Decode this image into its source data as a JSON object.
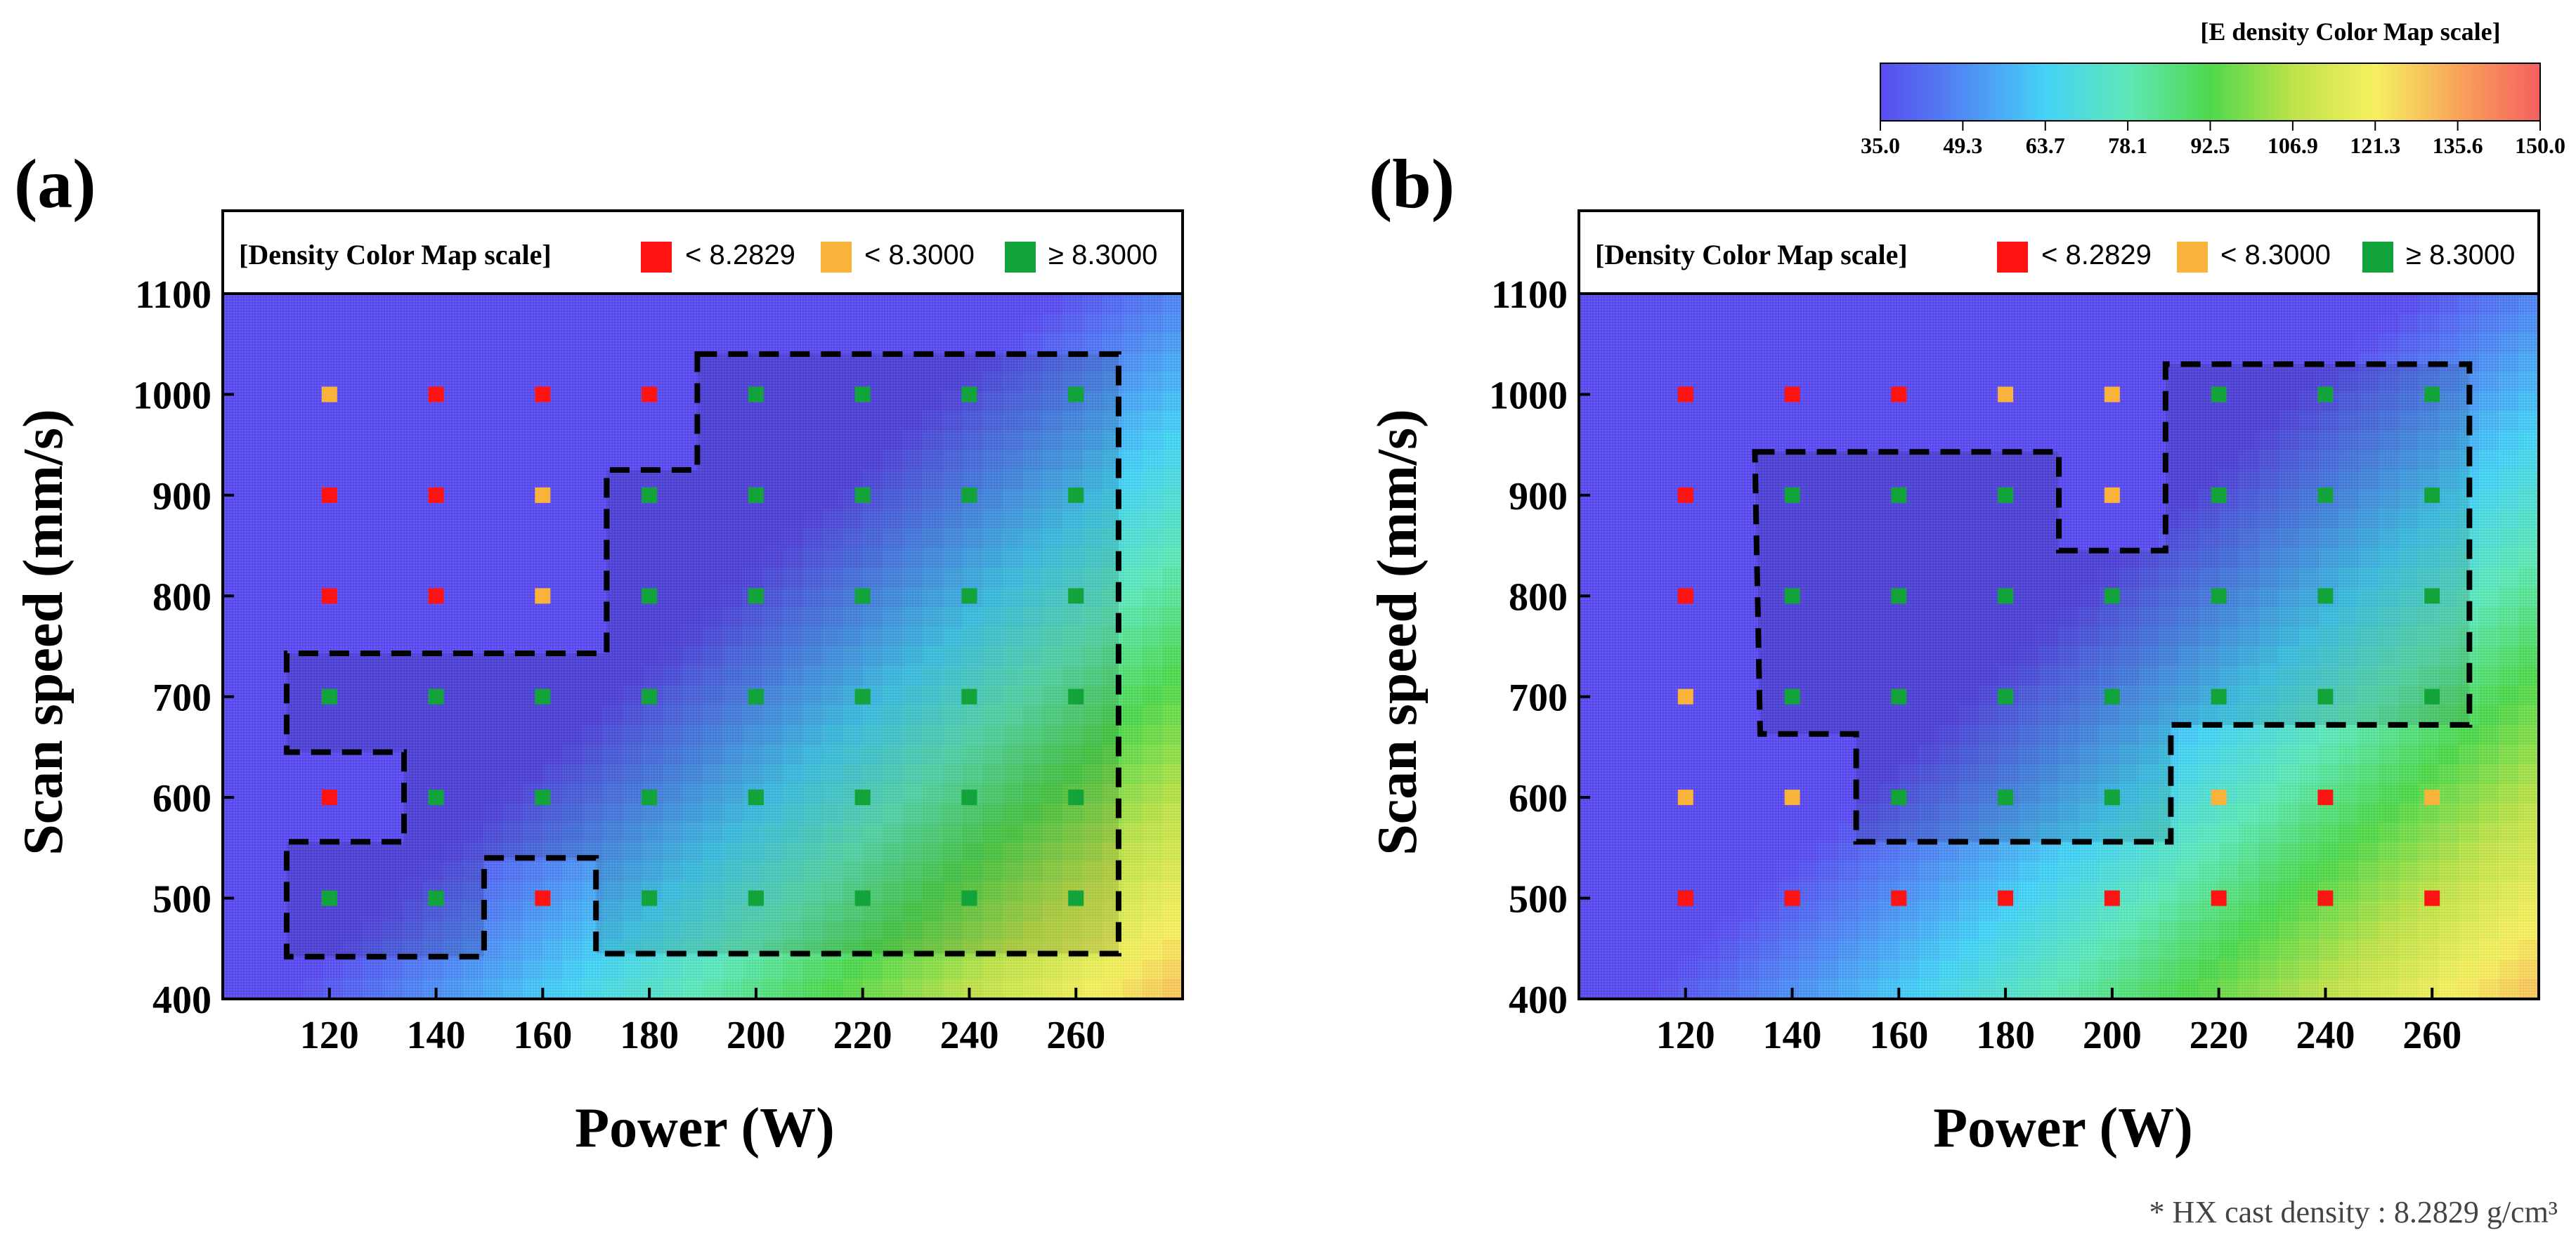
{
  "colors": {
    "red": "#ff1212",
    "orange": "#f9b23a",
    "green": "#12a33a",
    "border": "#000000"
  },
  "colorbar": {
    "title": "[E density Color Map scale]",
    "ticks": [
      "35.0",
      "49.3",
      "63.7",
      "78.1",
      "92.5",
      "106.9",
      "121.3",
      "135.6",
      "150.0"
    ],
    "min": 35.0,
    "max": 150.0,
    "gradient": [
      "#5a4cf0",
      "#4f8bf4",
      "#45d2f6",
      "#5ee8b8",
      "#4fd84d",
      "#bde24a",
      "#f6f060",
      "#f8a45a",
      "#f46060"
    ]
  },
  "footnote": "* HX cast density : 8.2829 g/cm³",
  "chart_data": [
    {
      "panel_label": "(a)",
      "type": "heatmap",
      "xlabel": "Power (W)",
      "ylabel": "Scan speed (mm/s)",
      "xlim": [
        100,
        280
      ],
      "ylim": [
        400,
        1100
      ],
      "x_ticks": [
        "120",
        "140",
        "160",
        "180",
        "200",
        "220",
        "240",
        "260"
      ],
      "y_ticks": [
        "400",
        "500",
        "600",
        "700",
        "800",
        "900",
        "1000",
        "1100"
      ],
      "legend": {
        "title": "[Density Color Map scale]",
        "entries": [
          {
            "label": "< 8.2829",
            "category": "red"
          },
          {
            "label": "< 8.3000",
            "category": "orange"
          },
          {
            "label": "≥ 8.3000",
            "category": "green"
          }
        ]
      },
      "background_color_field": "E density (J/mm³) = power / scan speed scaled; colorbar 35.0 to 150.0",
      "points": [
        {
          "power": 120,
          "speed": 1000,
          "category": "orange"
        },
        {
          "power": 140,
          "speed": 1000,
          "category": "red"
        },
        {
          "power": 160,
          "speed": 1000,
          "category": "red"
        },
        {
          "power": 180,
          "speed": 1000,
          "category": "red"
        },
        {
          "power": 200,
          "speed": 1000,
          "category": "green"
        },
        {
          "power": 220,
          "speed": 1000,
          "category": "green"
        },
        {
          "power": 240,
          "speed": 1000,
          "category": "green"
        },
        {
          "power": 260,
          "speed": 1000,
          "category": "green"
        },
        {
          "power": 120,
          "speed": 900,
          "category": "red"
        },
        {
          "power": 140,
          "speed": 900,
          "category": "red"
        },
        {
          "power": 160,
          "speed": 900,
          "category": "orange"
        },
        {
          "power": 180,
          "speed": 900,
          "category": "green"
        },
        {
          "power": 200,
          "speed": 900,
          "category": "green"
        },
        {
          "power": 220,
          "speed": 900,
          "category": "green"
        },
        {
          "power": 240,
          "speed": 900,
          "category": "green"
        },
        {
          "power": 260,
          "speed": 900,
          "category": "green"
        },
        {
          "power": 120,
          "speed": 800,
          "category": "red"
        },
        {
          "power": 140,
          "speed": 800,
          "category": "red"
        },
        {
          "power": 160,
          "speed": 800,
          "category": "orange"
        },
        {
          "power": 180,
          "speed": 800,
          "category": "green"
        },
        {
          "power": 200,
          "speed": 800,
          "category": "green"
        },
        {
          "power": 220,
          "speed": 800,
          "category": "green"
        },
        {
          "power": 240,
          "speed": 800,
          "category": "green"
        },
        {
          "power": 260,
          "speed": 800,
          "category": "green"
        },
        {
          "power": 120,
          "speed": 700,
          "category": "green"
        },
        {
          "power": 140,
          "speed": 700,
          "category": "green"
        },
        {
          "power": 160,
          "speed": 700,
          "category": "green"
        },
        {
          "power": 180,
          "speed": 700,
          "category": "green"
        },
        {
          "power": 200,
          "speed": 700,
          "category": "green"
        },
        {
          "power": 220,
          "speed": 700,
          "category": "green"
        },
        {
          "power": 240,
          "speed": 700,
          "category": "green"
        },
        {
          "power": 260,
          "speed": 700,
          "category": "green"
        },
        {
          "power": 120,
          "speed": 600,
          "category": "red"
        },
        {
          "power": 140,
          "speed": 600,
          "category": "green"
        },
        {
          "power": 160,
          "speed": 600,
          "category": "green"
        },
        {
          "power": 180,
          "speed": 600,
          "category": "green"
        },
        {
          "power": 200,
          "speed": 600,
          "category": "green"
        },
        {
          "power": 220,
          "speed": 600,
          "category": "green"
        },
        {
          "power": 240,
          "speed": 600,
          "category": "green"
        },
        {
          "power": 260,
          "speed": 600,
          "category": "green"
        },
        {
          "power": 120,
          "speed": 500,
          "category": "green"
        },
        {
          "power": 140,
          "speed": 500,
          "category": "green"
        },
        {
          "power": 160,
          "speed": 500,
          "category": "red"
        },
        {
          "power": 180,
          "speed": 500,
          "category": "green"
        },
        {
          "power": 200,
          "speed": 500,
          "category": "green"
        },
        {
          "power": 220,
          "speed": 500,
          "category": "green"
        },
        {
          "power": 240,
          "speed": 500,
          "category": "green"
        },
        {
          "power": 260,
          "speed": 500,
          "category": "green"
        }
      ],
      "process_window_outline": [
        [
          189,
          1040
        ],
        [
          268,
          1040
        ],
        [
          268,
          445
        ],
        [
          170,
          445
        ],
        [
          170,
          540
        ],
        [
          149,
          540
        ],
        [
          149,
          442
        ],
        [
          112,
          442
        ],
        [
          112,
          556
        ],
        [
          134,
          556
        ],
        [
          134,
          645
        ],
        [
          112,
          645
        ],
        [
          112,
          743
        ],
        [
          172,
          743
        ],
        [
          172,
          925
        ],
        [
          189,
          925
        ]
      ]
    },
    {
      "panel_label": "(b)",
      "type": "heatmap",
      "xlabel": "Power (W)",
      "ylabel": "Scan speed (mm/s)",
      "xlim": [
        100,
        280
      ],
      "ylim": [
        400,
        1100
      ],
      "x_ticks": [
        "120",
        "140",
        "160",
        "180",
        "200",
        "220",
        "240",
        "260"
      ],
      "y_ticks": [
        "400",
        "500",
        "600",
        "700",
        "800",
        "900",
        "1000",
        "1100"
      ],
      "legend": {
        "title": "[Density Color Map scale]",
        "entries": [
          {
            "label": "< 8.2829",
            "category": "red"
          },
          {
            "label": "< 8.3000",
            "category": "orange"
          },
          {
            "label": "≥ 8.3000",
            "category": "green"
          }
        ]
      },
      "background_color_field": "E density (J/mm³) = power / scan speed scaled; colorbar 35.0 to 150.0",
      "points": [
        {
          "power": 120,
          "speed": 1000,
          "category": "red"
        },
        {
          "power": 140,
          "speed": 1000,
          "category": "red"
        },
        {
          "power": 160,
          "speed": 1000,
          "category": "red"
        },
        {
          "power": 180,
          "speed": 1000,
          "category": "orange"
        },
        {
          "power": 200,
          "speed": 1000,
          "category": "orange"
        },
        {
          "power": 220,
          "speed": 1000,
          "category": "green"
        },
        {
          "power": 240,
          "speed": 1000,
          "category": "green"
        },
        {
          "power": 260,
          "speed": 1000,
          "category": "green"
        },
        {
          "power": 120,
          "speed": 900,
          "category": "red"
        },
        {
          "power": 140,
          "speed": 900,
          "category": "green"
        },
        {
          "power": 160,
          "speed": 900,
          "category": "green"
        },
        {
          "power": 180,
          "speed": 900,
          "category": "green"
        },
        {
          "power": 200,
          "speed": 900,
          "category": "orange"
        },
        {
          "power": 220,
          "speed": 900,
          "category": "green"
        },
        {
          "power": 240,
          "speed": 900,
          "category": "green"
        },
        {
          "power": 260,
          "speed": 900,
          "category": "green"
        },
        {
          "power": 120,
          "speed": 800,
          "category": "red"
        },
        {
          "power": 140,
          "speed": 800,
          "category": "green"
        },
        {
          "power": 160,
          "speed": 800,
          "category": "green"
        },
        {
          "power": 180,
          "speed": 800,
          "category": "green"
        },
        {
          "power": 200,
          "speed": 800,
          "category": "green"
        },
        {
          "power": 220,
          "speed": 800,
          "category": "green"
        },
        {
          "power": 240,
          "speed": 800,
          "category": "green"
        },
        {
          "power": 260,
          "speed": 800,
          "category": "green"
        },
        {
          "power": 120,
          "speed": 700,
          "category": "orange"
        },
        {
          "power": 140,
          "speed": 700,
          "category": "green"
        },
        {
          "power": 160,
          "speed": 700,
          "category": "green"
        },
        {
          "power": 180,
          "speed": 700,
          "category": "green"
        },
        {
          "power": 200,
          "speed": 700,
          "category": "green"
        },
        {
          "power": 220,
          "speed": 700,
          "category": "green"
        },
        {
          "power": 240,
          "speed": 700,
          "category": "green"
        },
        {
          "power": 260,
          "speed": 700,
          "category": "green"
        },
        {
          "power": 120,
          "speed": 600,
          "category": "orange"
        },
        {
          "power": 140,
          "speed": 600,
          "category": "orange"
        },
        {
          "power": 160,
          "speed": 600,
          "category": "green"
        },
        {
          "power": 180,
          "speed": 600,
          "category": "green"
        },
        {
          "power": 200,
          "speed": 600,
          "category": "green"
        },
        {
          "power": 220,
          "speed": 600,
          "category": "orange"
        },
        {
          "power": 240,
          "speed": 600,
          "category": "red"
        },
        {
          "power": 260,
          "speed": 600,
          "category": "orange"
        },
        {
          "power": 120,
          "speed": 500,
          "category": "red"
        },
        {
          "power": 140,
          "speed": 500,
          "category": "red"
        },
        {
          "power": 160,
          "speed": 500,
          "category": "red"
        },
        {
          "power": 180,
          "speed": 500,
          "category": "red"
        },
        {
          "power": 200,
          "speed": 500,
          "category": "red"
        },
        {
          "power": 220,
          "speed": 500,
          "category": "red"
        },
        {
          "power": 240,
          "speed": 500,
          "category": "red"
        },
        {
          "power": 260,
          "speed": 500,
          "category": "red"
        }
      ],
      "process_window_outline": [
        [
          133,
          943
        ],
        [
          190,
          943
        ],
        [
          190,
          845
        ],
        [
          210,
          845
        ],
        [
          210,
          1030
        ],
        [
          267,
          1030
        ],
        [
          267,
          672
        ],
        [
          211,
          672
        ],
        [
          211,
          556
        ],
        [
          152,
          556
        ],
        [
          152,
          663
        ],
        [
          134,
          663
        ]
      ]
    }
  ]
}
